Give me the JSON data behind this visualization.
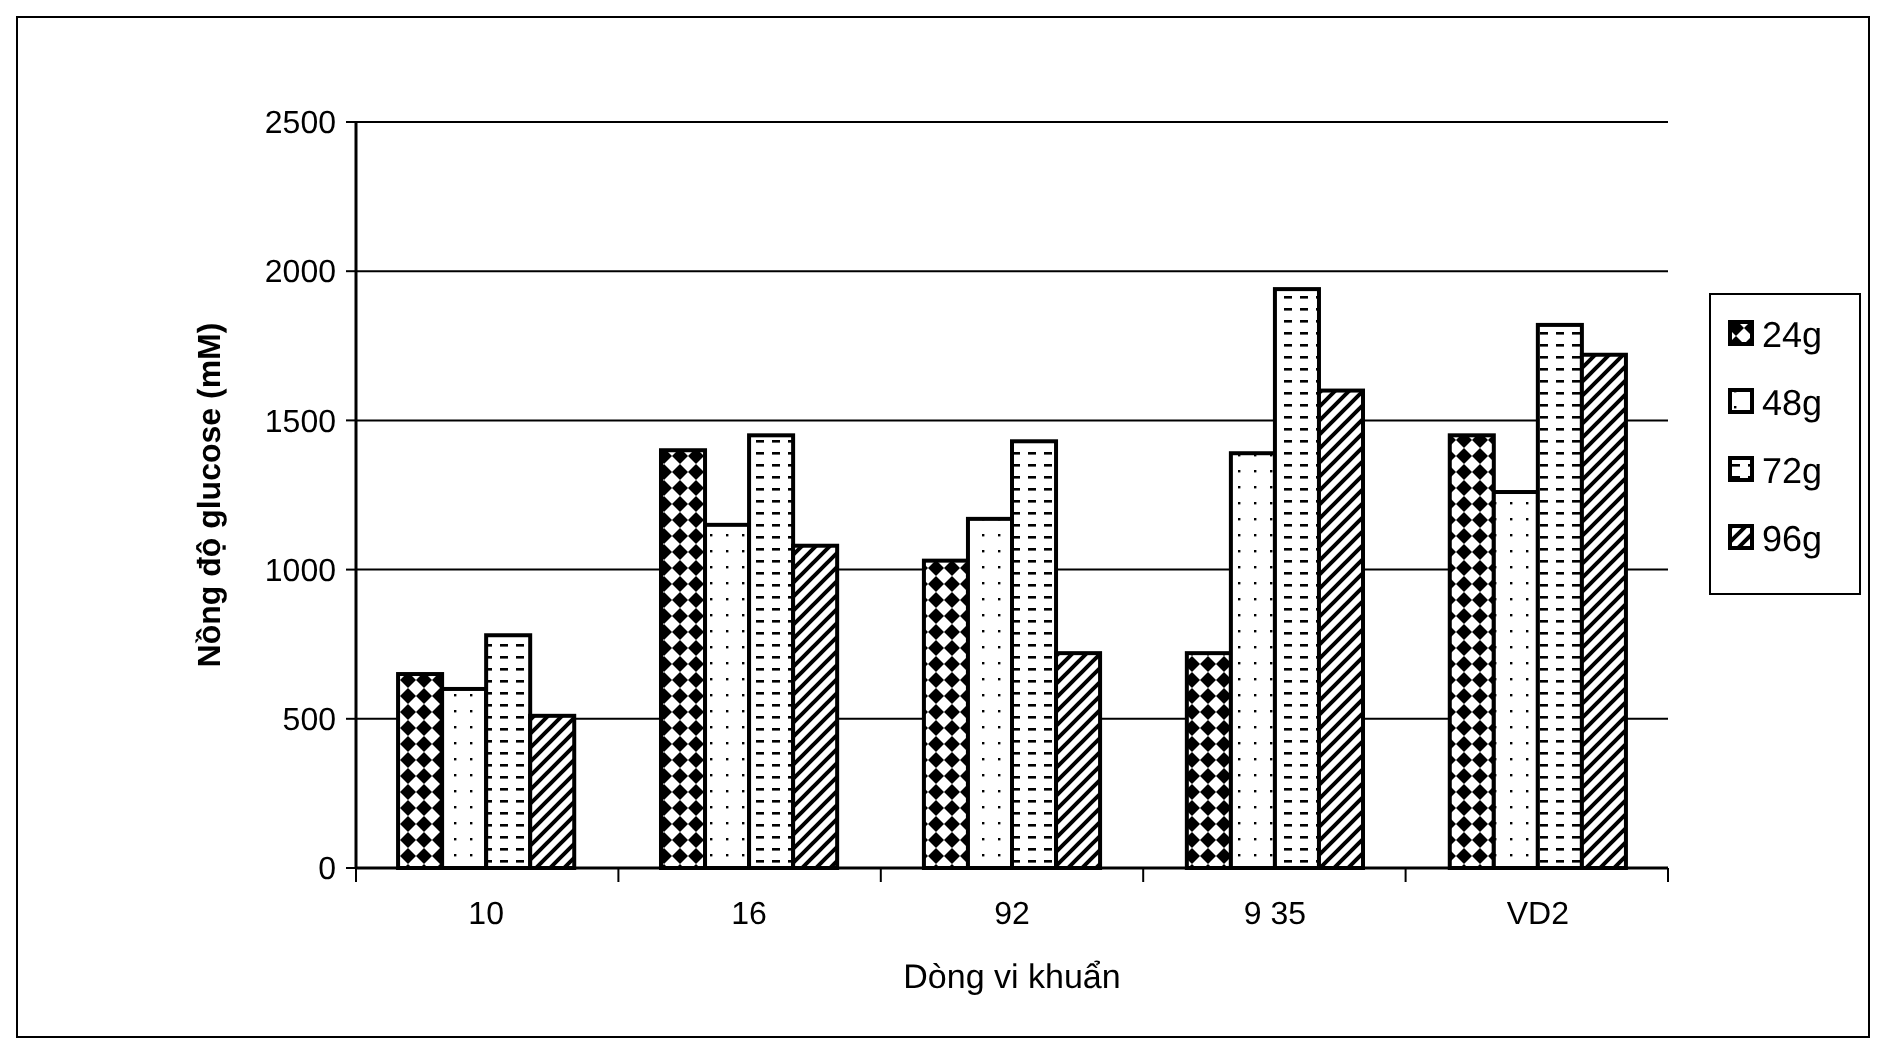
{
  "chart_data": {
    "type": "bar",
    "xlabel": "Dòng vi khuẩn",
    "ylabel": "Nồng độ glucose (mM)",
    "categories": [
      "10",
      "16",
      "92",
      "9 35",
      "VD2"
    ],
    "series": [
      {
        "name": "24g",
        "color": "#000000",
        "values": [
          650,
          1400,
          1030,
          720,
          1450
        ]
      },
      {
        "name": "48g",
        "color": "#000000",
        "values": [
          600,
          1150,
          1170,
          1390,
          1260
        ]
      },
      {
        "name": "72g",
        "color": "#000000",
        "values": [
          780,
          1450,
          1430,
          1940,
          1820
        ]
      },
      {
        "name": "96g",
        "color": "#000000",
        "values": [
          510,
          1080,
          720,
          1600,
          1720
        ]
      }
    ],
    "ylim": [
      0,
      2500
    ],
    "yticks": [
      0,
      500,
      1000,
      1500,
      2000,
      2500
    ],
    "grid": "y",
    "legend": "right"
  }
}
